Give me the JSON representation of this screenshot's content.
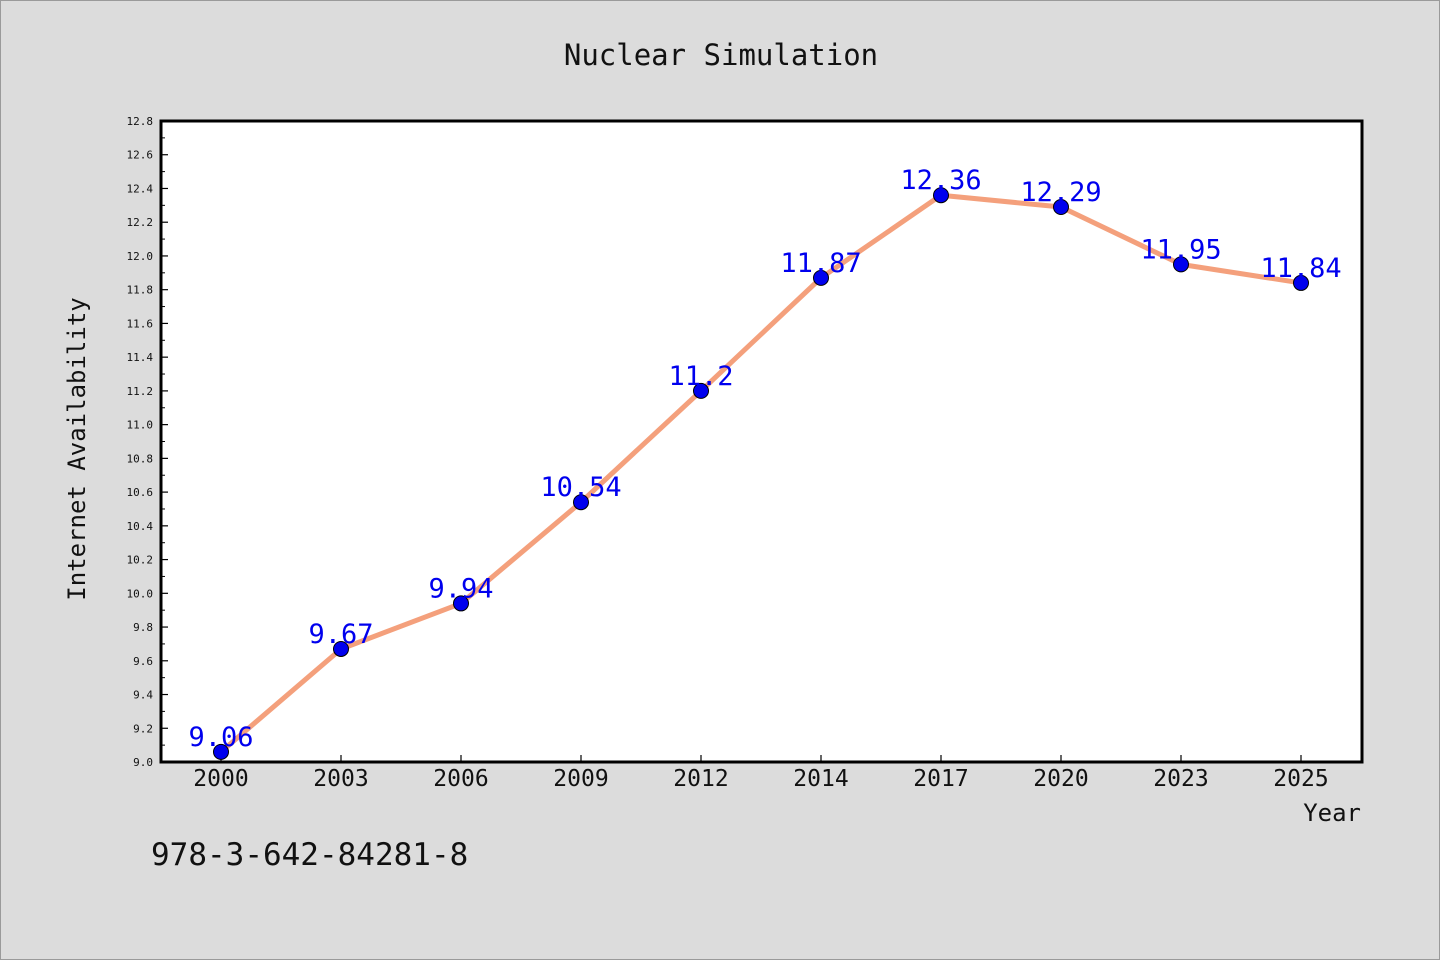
{
  "chart_data": {
    "type": "line",
    "title": "Nuclear Simulation",
    "xlabel": "Year",
    "ylabel": "Internet Availability",
    "categories": [
      "2000",
      "2003",
      "2006",
      "2009",
      "2012",
      "2014",
      "2017",
      "2020",
      "2023",
      "2025"
    ],
    "series": [
      {
        "values": [
          9.06,
          9.67,
          9.94,
          10.54,
          11.2,
          11.87,
          12.36,
          12.29,
          11.95,
          11.84
        ],
        "data_labels": [
          "9.06",
          "9.67",
          "9.94",
          "10.54",
          "11.2",
          "11.87",
          "12.36",
          "12.29",
          "11.95",
          "11.84"
        ],
        "line_color": "#f4a07c",
        "marker_color": "#0000ee"
      }
    ],
    "ylim": [
      9.0,
      12.8
    ],
    "yticks": [
      "9.0",
      "9.2",
      "9.4",
      "9.6",
      "9.8",
      "10.0",
      "10.2",
      "10.4",
      "10.6",
      "10.8",
      "11.0",
      "11.2",
      "11.4",
      "11.6",
      "11.8",
      "12.0",
      "12.2",
      "12.4",
      "12.6",
      "12.8"
    ],
    "grid": false,
    "legend": "none"
  },
  "footer": {
    "isbn": "978-3-642-84281-8"
  },
  "colors": {
    "background": "#dcdcdc",
    "plot_background": "#ffffff"
  }
}
